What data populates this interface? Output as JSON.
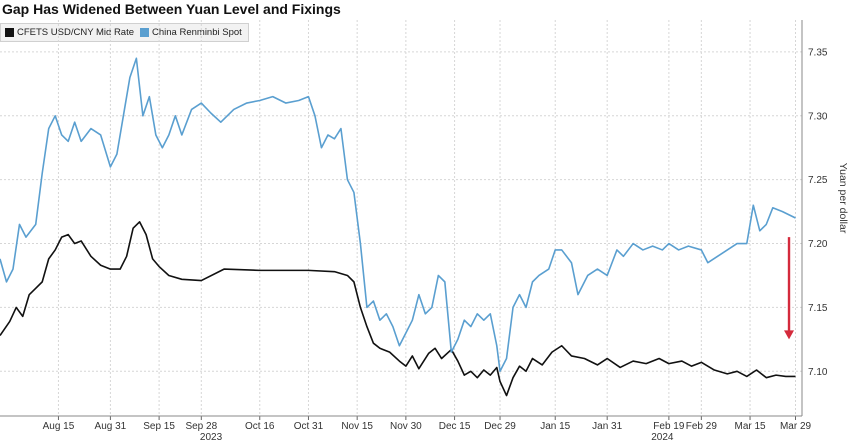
{
  "chart_data": {
    "type": "line",
    "title": "Gap Has Widened Between Yuan Level and Fixings",
    "ylabel": "Yuan per dollar",
    "ylim": [
      7.065,
      7.375
    ],
    "y_ticks": [
      "7.10",
      "7.15",
      "7.20",
      "7.25",
      "7.30",
      "7.35"
    ],
    "x_axis": {
      "start_date": "2023-07-28",
      "end_date": "2024-03-31",
      "month_ticks": [
        {
          "label": "Aug 15",
          "date": "2023-08-15"
        },
        {
          "label": "Aug 31",
          "date": "2023-08-31"
        },
        {
          "label": "Sep 15",
          "date": "2023-09-15"
        },
        {
          "label": "Sep 28",
          "date": "2023-09-28"
        },
        {
          "label": "Oct 16",
          "date": "2023-10-16"
        },
        {
          "label": "Oct 31",
          "date": "2023-10-31"
        },
        {
          "label": "Nov 15",
          "date": "2023-11-15"
        },
        {
          "label": "Nov 30",
          "date": "2023-11-30"
        },
        {
          "label": "Dec 15",
          "date": "2023-12-15"
        },
        {
          "label": "Dec 29",
          "date": "2023-12-29"
        },
        {
          "label": "Jan 15",
          "date": "2024-01-15"
        },
        {
          "label": "Jan 31",
          "date": "2024-01-31"
        },
        {
          "label": "Feb 19",
          "date": "2024-02-19"
        },
        {
          "label": "Feb 29",
          "date": "2024-02-29"
        },
        {
          "label": "Mar 15",
          "date": "2024-03-15"
        },
        {
          "label": "Mar 29",
          "date": "2024-03-29"
        }
      ],
      "year_labels": [
        {
          "label": "2023",
          "date": "2023-10-01"
        },
        {
          "label": "2024",
          "date": "2024-02-17"
        }
      ]
    },
    "grid": true,
    "legend_position": "top-left",
    "series": [
      {
        "name": "CFETS USD/CNY Mid Rate",
        "color": "#111111",
        "points": [
          [
            "2023-07-28",
            7.128
          ],
          [
            "2023-07-31",
            7.139
          ],
          [
            "2023-08-02",
            7.15
          ],
          [
            "2023-08-04",
            7.143
          ],
          [
            "2023-08-06",
            7.16
          ],
          [
            "2023-08-08",
            7.165
          ],
          [
            "2023-08-10",
            7.17
          ],
          [
            "2023-08-12",
            7.188
          ],
          [
            "2023-08-14",
            7.195
          ],
          [
            "2023-08-16",
            7.205
          ],
          [
            "2023-08-18",
            7.207
          ],
          [
            "2023-08-20",
            7.2
          ],
          [
            "2023-08-22",
            7.202
          ],
          [
            "2023-08-25",
            7.19
          ],
          [
            "2023-08-28",
            7.183
          ],
          [
            "2023-08-31",
            7.18
          ],
          [
            "2023-09-03",
            7.18
          ],
          [
            "2023-09-05",
            7.19
          ],
          [
            "2023-09-07",
            7.212
          ],
          [
            "2023-09-09",
            7.217
          ],
          [
            "2023-09-11",
            7.207
          ],
          [
            "2023-09-13",
            7.188
          ],
          [
            "2023-09-15",
            7.182
          ],
          [
            "2023-09-18",
            7.175
          ],
          [
            "2023-09-22",
            7.172
          ],
          [
            "2023-09-28",
            7.171
          ],
          [
            "2023-10-05",
            7.18
          ],
          [
            "2023-10-16",
            7.179
          ],
          [
            "2023-10-31",
            7.179
          ],
          [
            "2023-11-08",
            7.178
          ],
          [
            "2023-11-12",
            7.175
          ],
          [
            "2023-11-14",
            7.17
          ],
          [
            "2023-11-16",
            7.15
          ],
          [
            "2023-11-18",
            7.135
          ],
          [
            "2023-11-20",
            7.122
          ],
          [
            "2023-11-22",
            7.118
          ],
          [
            "2023-11-25",
            7.115
          ],
          [
            "2023-11-28",
            7.108
          ],
          [
            "2023-11-30",
            7.104
          ],
          [
            "2023-12-02",
            7.112
          ],
          [
            "2023-12-04",
            7.102
          ],
          [
            "2023-12-07",
            7.114
          ],
          [
            "2023-12-09",
            7.118
          ],
          [
            "2023-12-11",
            7.11
          ],
          [
            "2023-12-14",
            7.117
          ],
          [
            "2023-12-16",
            7.108
          ],
          [
            "2023-12-18",
            7.097
          ],
          [
            "2023-12-20",
            7.1
          ],
          [
            "2023-12-22",
            7.095
          ],
          [
            "2023-12-24",
            7.101
          ],
          [
            "2023-12-26",
            7.097
          ],
          [
            "2023-12-28",
            7.103
          ],
          [
            "2023-12-29",
            7.092
          ],
          [
            "2023-12-31",
            7.081
          ],
          [
            "2024-01-02",
            7.095
          ],
          [
            "2024-01-04",
            7.104
          ],
          [
            "2024-01-06",
            7.1
          ],
          [
            "2024-01-08",
            7.11
          ],
          [
            "2024-01-11",
            7.105
          ],
          [
            "2024-01-14",
            7.115
          ],
          [
            "2024-01-17",
            7.12
          ],
          [
            "2024-01-20",
            7.112
          ],
          [
            "2024-01-24",
            7.11
          ],
          [
            "2024-01-28",
            7.105
          ],
          [
            "2024-01-31",
            7.11
          ],
          [
            "2024-02-04",
            7.103
          ],
          [
            "2024-02-08",
            7.108
          ],
          [
            "2024-02-12",
            7.106
          ],
          [
            "2024-02-16",
            7.11
          ],
          [
            "2024-02-19",
            7.106
          ],
          [
            "2024-02-23",
            7.108
          ],
          [
            "2024-02-26",
            7.104
          ],
          [
            "2024-02-29",
            7.107
          ],
          [
            "2024-03-04",
            7.101
          ],
          [
            "2024-03-08",
            7.098
          ],
          [
            "2024-03-11",
            7.1
          ],
          [
            "2024-03-14",
            7.096
          ],
          [
            "2024-03-17",
            7.101
          ],
          [
            "2024-03-20",
            7.095
          ],
          [
            "2024-03-23",
            7.097
          ],
          [
            "2024-03-26",
            7.096
          ],
          [
            "2024-03-29",
            7.096
          ]
        ]
      },
      {
        "name": "China Renminbi Spot",
        "color": "#5a9fd0",
        "points": [
          [
            "2023-07-28",
            7.188
          ],
          [
            "2023-07-30",
            7.17
          ],
          [
            "2023-08-01",
            7.18
          ],
          [
            "2023-08-03",
            7.215
          ],
          [
            "2023-08-05",
            7.205
          ],
          [
            "2023-08-08",
            7.215
          ],
          [
            "2023-08-10",
            7.255
          ],
          [
            "2023-08-12",
            7.29
          ],
          [
            "2023-08-14",
            7.3
          ],
          [
            "2023-08-16",
            7.285
          ],
          [
            "2023-08-18",
            7.28
          ],
          [
            "2023-08-20",
            7.295
          ],
          [
            "2023-08-22",
            7.28
          ],
          [
            "2023-08-25",
            7.29
          ],
          [
            "2023-08-28",
            7.285
          ],
          [
            "2023-08-31",
            7.26
          ],
          [
            "2023-09-02",
            7.27
          ],
          [
            "2023-09-04",
            7.3
          ],
          [
            "2023-09-06",
            7.33
          ],
          [
            "2023-09-08",
            7.345
          ],
          [
            "2023-09-10",
            7.3
          ],
          [
            "2023-09-12",
            7.315
          ],
          [
            "2023-09-14",
            7.285
          ],
          [
            "2023-09-16",
            7.275
          ],
          [
            "2023-09-18",
            7.285
          ],
          [
            "2023-09-20",
            7.3
          ],
          [
            "2023-09-22",
            7.285
          ],
          [
            "2023-09-25",
            7.305
          ],
          [
            "2023-09-28",
            7.31
          ],
          [
            "2023-10-01",
            7.302
          ],
          [
            "2023-10-04",
            7.295
          ],
          [
            "2023-10-08",
            7.305
          ],
          [
            "2023-10-12",
            7.31
          ],
          [
            "2023-10-16",
            7.312
          ],
          [
            "2023-10-20",
            7.315
          ],
          [
            "2023-10-24",
            7.31
          ],
          [
            "2023-10-28",
            7.312
          ],
          [
            "2023-10-31",
            7.315
          ],
          [
            "2023-11-02",
            7.3
          ],
          [
            "2023-11-04",
            7.275
          ],
          [
            "2023-11-06",
            7.285
          ],
          [
            "2023-11-08",
            7.282
          ],
          [
            "2023-11-10",
            7.29
          ],
          [
            "2023-11-12",
            7.25
          ],
          [
            "2023-11-14",
            7.24
          ],
          [
            "2023-11-16",
            7.2
          ],
          [
            "2023-11-18",
            7.15
          ],
          [
            "2023-11-20",
            7.155
          ],
          [
            "2023-11-22",
            7.14
          ],
          [
            "2023-11-24",
            7.145
          ],
          [
            "2023-11-26",
            7.135
          ],
          [
            "2023-11-28",
            7.12
          ],
          [
            "2023-11-30",
            7.13
          ],
          [
            "2023-12-02",
            7.14
          ],
          [
            "2023-12-04",
            7.16
          ],
          [
            "2023-12-06",
            7.145
          ],
          [
            "2023-12-08",
            7.15
          ],
          [
            "2023-12-10",
            7.175
          ],
          [
            "2023-12-12",
            7.17
          ],
          [
            "2023-12-14",
            7.115
          ],
          [
            "2023-12-16",
            7.125
          ],
          [
            "2023-12-18",
            7.14
          ],
          [
            "2023-12-20",
            7.135
          ],
          [
            "2023-12-22",
            7.145
          ],
          [
            "2023-12-24",
            7.14
          ],
          [
            "2023-12-26",
            7.145
          ],
          [
            "2023-12-28",
            7.12
          ],
          [
            "2023-12-29",
            7.1
          ],
          [
            "2023-12-31",
            7.11
          ],
          [
            "2024-01-02",
            7.15
          ],
          [
            "2024-01-04",
            7.16
          ],
          [
            "2024-01-06",
            7.15
          ],
          [
            "2024-01-08",
            7.17
          ],
          [
            "2024-01-10",
            7.175
          ],
          [
            "2024-01-13",
            7.18
          ],
          [
            "2024-01-15",
            7.195
          ],
          [
            "2024-01-17",
            7.195
          ],
          [
            "2024-01-20",
            7.185
          ],
          [
            "2024-01-22",
            7.16
          ],
          [
            "2024-01-25",
            7.175
          ],
          [
            "2024-01-28",
            7.18
          ],
          [
            "2024-01-31",
            7.175
          ],
          [
            "2024-02-03",
            7.195
          ],
          [
            "2024-02-05",
            7.19
          ],
          [
            "2024-02-08",
            7.2
          ],
          [
            "2024-02-11",
            7.195
          ],
          [
            "2024-02-14",
            7.198
          ],
          [
            "2024-02-17",
            7.195
          ],
          [
            "2024-02-19",
            7.2
          ],
          [
            "2024-02-22",
            7.195
          ],
          [
            "2024-02-25",
            7.198
          ],
          [
            "2024-02-29",
            7.195
          ],
          [
            "2024-03-02",
            7.185
          ],
          [
            "2024-03-05",
            7.19
          ],
          [
            "2024-03-08",
            7.195
          ],
          [
            "2024-03-11",
            7.2
          ],
          [
            "2024-03-14",
            7.2
          ],
          [
            "2024-03-16",
            7.23
          ],
          [
            "2024-03-18",
            7.21
          ],
          [
            "2024-03-20",
            7.215
          ],
          [
            "2024-03-22",
            7.228
          ],
          [
            "2024-03-25",
            7.225
          ],
          [
            "2024-03-29",
            7.22
          ]
        ]
      }
    ],
    "annotations": [
      {
        "type": "arrow",
        "direction": "down",
        "color": "#d42a3c",
        "date": "2024-03-27",
        "from": 7.205,
        "to": 7.125
      }
    ]
  }
}
